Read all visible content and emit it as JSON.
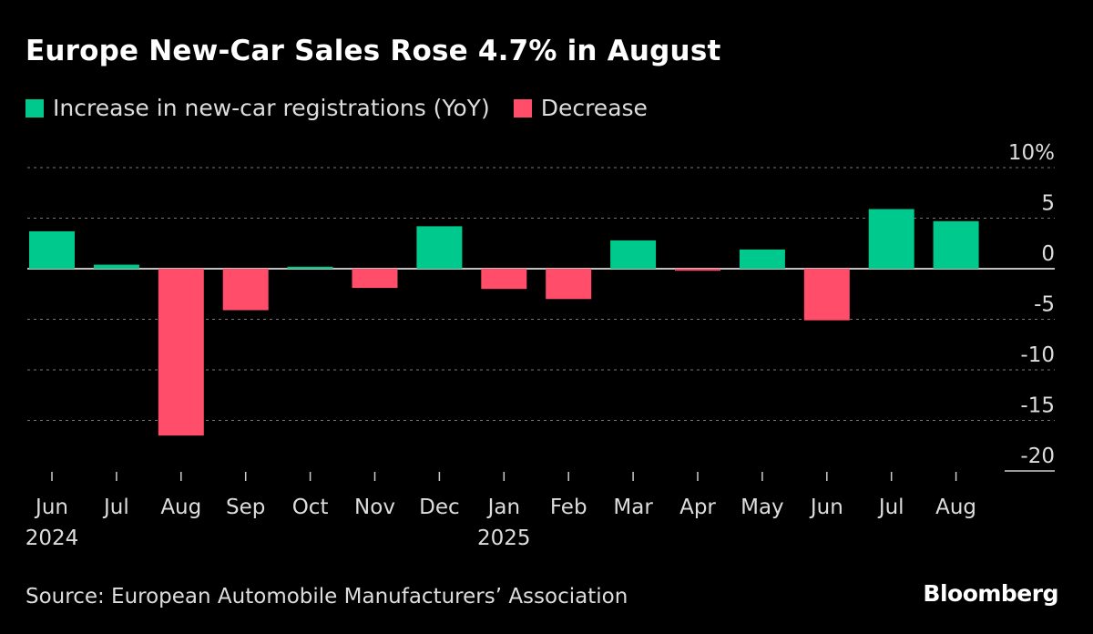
{
  "colors": {
    "increase": "#00c98d",
    "decrease": "#ff4d6a",
    "background": "#000000",
    "grid": "#777777"
  },
  "header": {
    "title": "Europe New-Car Sales Rose 4.7% in August"
  },
  "legend": {
    "increase": "Increase in new-car registrations (YoY)",
    "decrease": "Decrease"
  },
  "footer": {
    "source": "Source: European Automobile Manufacturers’ Association",
    "brand": "Bloomberg"
  },
  "chart_data": {
    "type": "bar",
    "title": "Europe New-Car Sales Rose 4.7% in August",
    "xlabel": "",
    "ylabel": "",
    "categories": [
      "Jun",
      "Jul",
      "Aug",
      "Sep",
      "Oct",
      "Nov",
      "Dec",
      "Jan",
      "Feb",
      "Mar",
      "Apr",
      "May",
      "Jun",
      "Jul",
      "Aug"
    ],
    "year_labels": {
      "0": "2024",
      "7": "2025"
    },
    "values": [
      3.7,
      0.4,
      -16.5,
      -4.1,
      0.2,
      -1.9,
      4.2,
      -2.0,
      -3.0,
      2.8,
      -0.2,
      1.9,
      -5.1,
      5.9,
      4.7
    ],
    "ylim": [
      -20,
      10
    ],
    "yticks": [
      10,
      5,
      0,
      -5,
      -10,
      -15,
      -20
    ],
    "ytick_labels": [
      "10%",
      "5",
      "0",
      "-5",
      "-10",
      "-15",
      "-20"
    ],
    "grid": true,
    "legend_position": "top-left"
  }
}
